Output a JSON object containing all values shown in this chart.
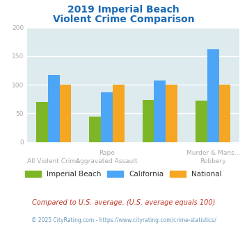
{
  "title_line1": "2019 Imperial Beach",
  "title_line2": "Violent Crime Comparison",
  "series": {
    "Imperial Beach": [
      70,
      44,
      74,
      72
    ],
    "California": [
      117,
      87,
      108,
      162
    ],
    "National": [
      100,
      100,
      100,
      100
    ]
  },
  "colors": {
    "Imperial Beach": "#7db728",
    "California": "#4da6f5",
    "National": "#f5a623"
  },
  "ylim": [
    0,
    200
  ],
  "yticks": [
    0,
    50,
    100,
    150,
    200
  ],
  "background_color": "#ffffff",
  "plot_bg": "#ddeaee",
  "title_color": "#1a6ab5",
  "footnote1": "Compared to U.S. average. (U.S. average equals 100)",
  "footnote2": "© 2025 CityRating.com - https://www.cityrating.com/crime-statistics/",
  "footnote1_color": "#c0392b",
  "footnote2_color": "#6699bb",
  "legend_labels": [
    "Imperial Beach",
    "California",
    "National"
  ],
  "tick_label_color": "#aaaaaa",
  "grid_color": "#ffffff",
  "top_labels": [
    "",
    "Rape",
    "",
    "Murder & Mans..."
  ],
  "bot_labels": [
    "All Violent Crime",
    "Aggravated Assault",
    "",
    "Robbery"
  ]
}
